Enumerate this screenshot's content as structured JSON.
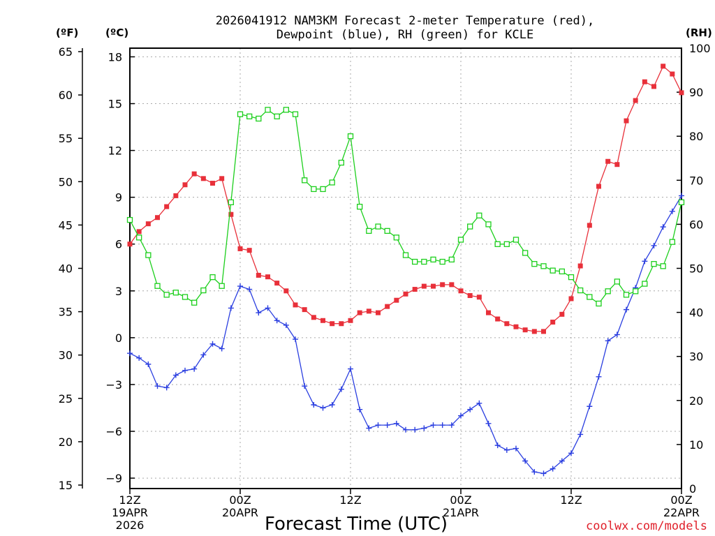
{
  "chart_data": {
    "type": "line",
    "title_line1": "2026041912 NAM3KM Forecast 2-meter Temperature (red),",
    "title_line2": "Dewpoint (blue), RH (green) for KCLE",
    "xlabel": "Forecast Time (UTC)",
    "credit": "coolwx.com/models",
    "units": {
      "fahrenheit": "(ºF)",
      "celsius": "(ºC)",
      "rh": "(RH)"
    },
    "x_range_hours": [
      0,
      60
    ],
    "celsius_range": [
      -9.667,
      18.556
    ],
    "celsius_ticks": [
      -9,
      -6,
      -3,
      0,
      3,
      6,
      9,
      12,
      15,
      18
    ],
    "fahrenheit_ticks": [
      15,
      20,
      25,
      30,
      35,
      40,
      45,
      50,
      55,
      60,
      65
    ],
    "rh_range": [
      0,
      100
    ],
    "rh_ticks": [
      0,
      10,
      20,
      30,
      40,
      50,
      60,
      70,
      80,
      90,
      100
    ],
    "x_ticks": [
      {
        "hour": 0,
        "lines": [
          "12Z",
          "19APR",
          "2026"
        ]
      },
      {
        "hour": 12,
        "lines": [
          "00Z",
          "20APR"
        ]
      },
      {
        "hour": 24,
        "lines": [
          "12Z"
        ]
      },
      {
        "hour": 36,
        "lines": [
          "00Z",
          "21APR"
        ]
      },
      {
        "hour": 48,
        "lines": [
          "12Z"
        ]
      },
      {
        "hour": 60,
        "lines": [
          "00Z",
          "22APR"
        ]
      }
    ],
    "hours": [
      0,
      1,
      2,
      3,
      4,
      5,
      6,
      7,
      8,
      9,
      10,
      11,
      12,
      13,
      14,
      15,
      16,
      17,
      18,
      19,
      20,
      21,
      22,
      23,
      24,
      25,
      26,
      27,
      28,
      29,
      30,
      31,
      32,
      33,
      34,
      35,
      36,
      37,
      38,
      39,
      40,
      41,
      42,
      43,
      44,
      45,
      46,
      47,
      48,
      49,
      50,
      51,
      52,
      53,
      54,
      55,
      56,
      57,
      58,
      59,
      60
    ],
    "series": [
      {
        "name": "2-meter Temperature",
        "unit": "C",
        "color": "#e8303a",
        "marker": "filled-square",
        "values": [
          6.0,
          6.8,
          7.3,
          7.7,
          8.4,
          9.1,
          9.8,
          10.5,
          10.2,
          9.9,
          10.2,
          7.9,
          5.7,
          5.6,
          4.0,
          3.9,
          3.5,
          3.0,
          2.1,
          1.8,
          1.3,
          1.1,
          0.9,
          0.9,
          1.1,
          1.6,
          1.7,
          1.6,
          2.0,
          2.4,
          2.8,
          3.1,
          3.3,
          3.3,
          3.4,
          3.4,
          3.0,
          2.7,
          2.6,
          1.6,
          1.2,
          0.9,
          0.7,
          0.5,
          0.4,
          0.4,
          1.0,
          1.5,
          2.5,
          4.6,
          7.2,
          9.7,
          11.3,
          11.1,
          13.9,
          15.2,
          16.4,
          16.1,
          17.4,
          16.9,
          15.7
        ]
      },
      {
        "name": "Dewpoint",
        "unit": "C",
        "color": "#2a3ee0",
        "marker": "plus",
        "values": [
          -1.0,
          -1.3,
          -1.7,
          -3.1,
          -3.2,
          -2.4,
          -2.1,
          -2.0,
          -1.1,
          -0.4,
          -0.7,
          1.9,
          3.3,
          3.1,
          1.6,
          1.9,
          1.1,
          0.8,
          -0.1,
          -3.1,
          -4.3,
          -4.5,
          -4.3,
          -3.3,
          -2.0,
          -4.6,
          -5.8,
          -5.6,
          -5.6,
          -5.5,
          -5.9,
          -5.9,
          -5.8,
          -5.6,
          -5.6,
          -5.6,
          -5.0,
          -4.6,
          -4.2,
          -5.5,
          -6.9,
          -7.2,
          -7.1,
          -7.9,
          -8.6,
          -8.7,
          -8.4,
          -7.9,
          -7.4,
          -6.2,
          -4.4,
          -2.5,
          -0.2,
          0.2,
          1.8,
          3.2,
          4.9,
          5.9,
          7.1,
          8.1,
          9.1
        ]
      },
      {
        "name": "RH",
        "unit": "%",
        "color": "#1ccf1c",
        "marker": "open-square",
        "values": [
          61,
          57,
          53,
          46,
          44,
          44.5,
          43.5,
          42.2,
          45,
          48,
          46,
          65,
          85,
          84.5,
          84,
          86,
          84.5,
          86,
          85,
          70,
          68,
          68,
          69.5,
          74,
          80,
          64,
          58.5,
          59.5,
          58.5,
          57,
          53,
          51.5,
          51.5,
          52,
          51.5,
          52,
          56.5,
          59.5,
          62,
          60,
          55.5,
          55.5,
          56.5,
          53.5,
          51,
          50.5,
          49.5,
          49.3,
          48,
          45,
          43.5,
          42,
          44.8,
          47,
          44,
          44.8,
          46.5,
          51,
          50.5,
          56,
          65
        ]
      }
    ]
  }
}
